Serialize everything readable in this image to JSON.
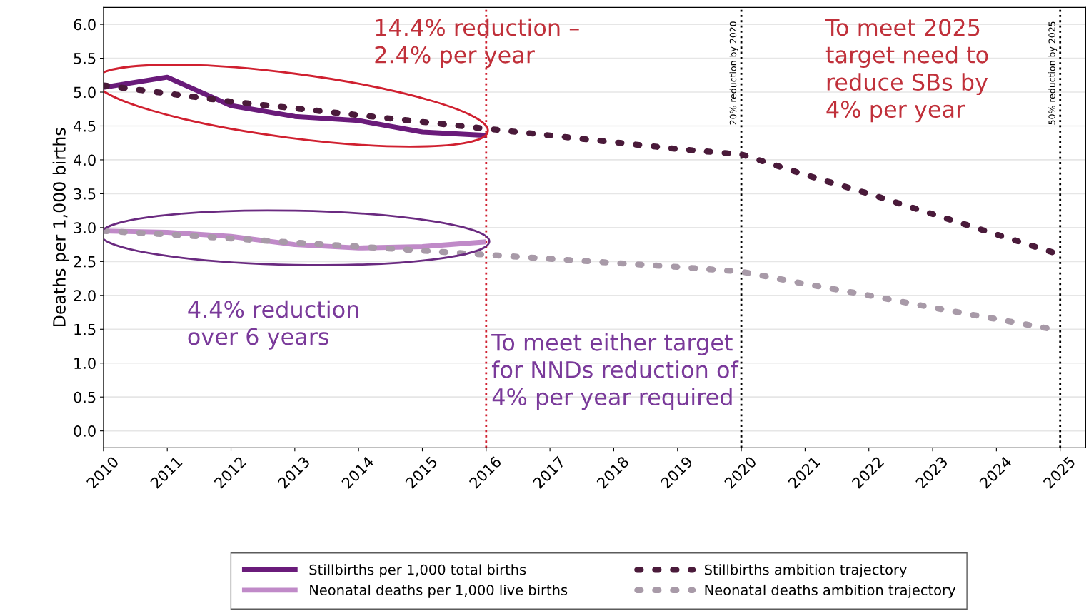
{
  "chart_data": {
    "type": "line",
    "ylabel": "Deaths per 1,000 births",
    "x": [
      2010,
      2011,
      2012,
      2013,
      2014,
      2015,
      2016,
      2017,
      2018,
      2019,
      2020,
      2021,
      2022,
      2023,
      2024,
      2025
    ],
    "xlim": [
      2010,
      2025.4
    ],
    "xticks": [
      2010,
      2011,
      2012,
      2013,
      2014,
      2015,
      2016,
      2017,
      2018,
      2019,
      2020,
      2021,
      2022,
      2023,
      2024,
      2025
    ],
    "ylim": [
      -0.25,
      6.25
    ],
    "yticks": [
      {
        "value": 0,
        "label": "0.0"
      },
      0.5,
      {
        "value": 1,
        "label": "1.0"
      },
      1.5,
      {
        "value": 2,
        "label": "2.0"
      },
      2.5,
      {
        "value": 3,
        "label": "3.0"
      },
      3.5,
      {
        "value": 4,
        "label": "4.0"
      },
      4.5,
      {
        "value": 5,
        "label": "5.0"
      },
      5.5,
      {
        "value": 6,
        "label": "6.0"
      }
    ],
    "grid": "y",
    "legend": "bottom",
    "series": [
      {
        "name": "Stillbirths per 1,000 total births",
        "color": "#6a1b7a",
        "line_style": "solid",
        "values": [
          5.07,
          5.22,
          4.8,
          4.64,
          4.58,
          4.41,
          4.36,
          null,
          null,
          null,
          null,
          null,
          null,
          null,
          null,
          null
        ]
      },
      {
        "name": "Stillbirths ambition trajectory",
        "color": "#4a1a3a",
        "line_style": "dotted",
        "values": [
          5.1,
          4.98,
          4.86,
          4.76,
          4.66,
          4.56,
          4.46,
          4.36,
          4.26,
          4.16,
          4.08,
          3.78,
          3.5,
          3.2,
          2.9,
          2.6
        ]
      },
      {
        "name": "Neonatal deaths per 1,000 live births",
        "color": "#c08ac8",
        "line_style": "solid",
        "values": [
          2.95,
          2.93,
          2.87,
          2.75,
          2.7,
          2.72,
          2.79,
          null,
          null,
          null,
          null,
          null,
          null,
          null,
          null,
          null
        ]
      },
      {
        "name": "Neonatal deaths ambition trajectory",
        "color": "#a89aa8",
        "line_style": "dotted",
        "values": [
          2.95,
          2.9,
          2.84,
          2.78,
          2.72,
          2.66,
          2.6,
          2.54,
          2.48,
          2.42,
          2.35,
          2.17,
          2.0,
          1.82,
          1.65,
          1.48
        ]
      }
    ],
    "ref_lines": [
      {
        "axis": "x",
        "value": 2016,
        "label": null,
        "color": "#d02030",
        "line_style": "dotted"
      },
      {
        "axis": "x",
        "value": 2020,
        "label": "20% reduction by 2020",
        "color": "#000000",
        "line_style": "dotted"
      },
      {
        "axis": "x",
        "value": 2025,
        "label": "50% reduction by 2025",
        "color": "#000000",
        "line_style": "dotted"
      }
    ],
    "annotations": [
      "14.4% reduction –\n2.4% per year",
      "To meet 2025\ntarget need to\nreduce SBs by\n4% per year",
      "4.4% reduction\nover 6 years",
      "To meet either target\nfor NNDs reduction of\n4% per year required"
    ]
  }
}
